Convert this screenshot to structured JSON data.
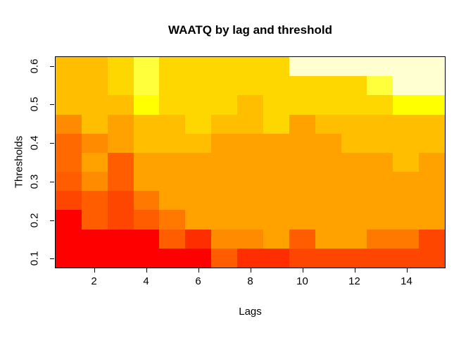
{
  "title": "WAATQ by lag and threshold",
  "chart_data": {
    "type": "heatmap",
    "title": "WAATQ by lag and threshold",
    "xlabel": "Lags",
    "ylabel": "Thresholds",
    "x_values": [
      1,
      2,
      3,
      4,
      5,
      6,
      7,
      8,
      9,
      10,
      11,
      12,
      13,
      14,
      15
    ],
    "x_tick_values": [
      2,
      4,
      6,
      8,
      10,
      12,
      14
    ],
    "x_tick_labels": [
      "2",
      "4",
      "6",
      "8",
      "10",
      "12",
      "14"
    ],
    "x_range": [
      0.5,
      15.5
    ],
    "y_values_top_to_bottom": [
      0.6,
      0.55,
      0.5,
      0.45,
      0.4,
      0.35,
      0.3,
      0.25,
      0.2,
      0.15,
      0.1
    ],
    "y_tick_values": [
      0.1,
      0.2,
      0.3,
      0.4,
      0.5,
      0.6
    ],
    "y_tick_labels": [
      "0.1",
      "0.2",
      "0.3",
      "0.4",
      "0.5",
      "0.6"
    ],
    "y_range": [
      0.075,
      0.625
    ],
    "grid": false,
    "legend": "none",
    "palette": [
      "#FF0000",
      "#FF2E00",
      "#FF4600",
      "#FF5D00",
      "#FF6900",
      "#FF7800",
      "#FF8B00",
      "#FFA200",
      "#FFBE00",
      "#FFD700",
      "#FFFF00",
      "#FFFF3C",
      "#FFFFD2"
    ],
    "cell_colors_rows_top_to_bottom": [
      [
        "#FFBE00",
        "#FFBE00",
        "#FFD700",
        "#FFFF3C",
        "#FFD700",
        "#FFD700",
        "#FFD700",
        "#FFD700",
        "#FFD700",
        "#FFFFD2",
        "#FFFFD2",
        "#FFFFD2",
        "#FFFFD2",
        "#FFFFD2",
        "#FFFFD2"
      ],
      [
        "#FFBE00",
        "#FFBE00",
        "#FFD700",
        "#FFFF3C",
        "#FFD700",
        "#FFD700",
        "#FFD700",
        "#FFD700",
        "#FFD700",
        "#FFD700",
        "#FFD700",
        "#FFD700",
        "#FFFF3C",
        "#FFFFD2",
        "#FFFFD2"
      ],
      [
        "#FFBE00",
        "#FFBE00",
        "#FFBE00",
        "#FFFF00",
        "#FFD700",
        "#FFD700",
        "#FFD700",
        "#FFBE00",
        "#FFD700",
        "#FFD700",
        "#FFD700",
        "#FFD700",
        "#FFD700",
        "#FFFF00",
        "#FFFF00"
      ],
      [
        "#FF8B00",
        "#FFBE00",
        "#FFA200",
        "#FFBE00",
        "#FFBE00",
        "#FFD700",
        "#FFBE00",
        "#FFBE00",
        "#FFD700",
        "#FFA200",
        "#FFBE00",
        "#FFBE00",
        "#FFBE00",
        "#FFBE00",
        "#FFBE00"
      ],
      [
        "#FF6900",
        "#FF8B00",
        "#FFA200",
        "#FFBE00",
        "#FFBE00",
        "#FFBE00",
        "#FFA200",
        "#FFA200",
        "#FFA200",
        "#FFA200",
        "#FFA200",
        "#FFBE00",
        "#FFBE00",
        "#FFBE00",
        "#FFBE00"
      ],
      [
        "#FF6900",
        "#FFA200",
        "#FF5D00",
        "#FFA200",
        "#FFA200",
        "#FFA200",
        "#FFA200",
        "#FFA200",
        "#FFA200",
        "#FFA200",
        "#FFA200",
        "#FFA200",
        "#FFA200",
        "#FFBE00",
        "#FFA200"
      ],
      [
        "#FF5D00",
        "#FF8B00",
        "#FF5D00",
        "#FFA200",
        "#FFA200",
        "#FFA200",
        "#FFA200",
        "#FFA200",
        "#FFA200",
        "#FFA200",
        "#FFA200",
        "#FFA200",
        "#FFA200",
        "#FFA200",
        "#FFA200"
      ],
      [
        "#FF4600",
        "#FF5D00",
        "#FF4600",
        "#FF7800",
        "#FFA200",
        "#FFA200",
        "#FFA200",
        "#FFA200",
        "#FFA200",
        "#FFA200",
        "#FFA200",
        "#FFA200",
        "#FFA200",
        "#FFA200",
        "#FFA200"
      ],
      [
        "#FF0000",
        "#FF5D00",
        "#FF4600",
        "#FF5D00",
        "#FF7800",
        "#FFA200",
        "#FFA200",
        "#FFA200",
        "#FFA200",
        "#FFA200",
        "#FFA200",
        "#FFA200",
        "#FFA200",
        "#FFA200",
        "#FFA200"
      ],
      [
        "#FF0000",
        "#FF0000",
        "#FF0000",
        "#FF0000",
        "#FF5D00",
        "#FF2E00",
        "#FF8B00",
        "#FF8B00",
        "#FFA200",
        "#FF5D00",
        "#FFA200",
        "#FFA200",
        "#FF7800",
        "#FF7800",
        "#FF4600"
      ],
      [
        "#FF0000",
        "#FF0000",
        "#FF0000",
        "#FF0000",
        "#FF0000",
        "#FF0000",
        "#FF5D00",
        "#FF2E00",
        "#FF2E00",
        "#FF4600",
        "#FF4600",
        "#FF4600",
        "#FF4600",
        "#FF4600",
        "#FF4600"
      ]
    ]
  }
}
